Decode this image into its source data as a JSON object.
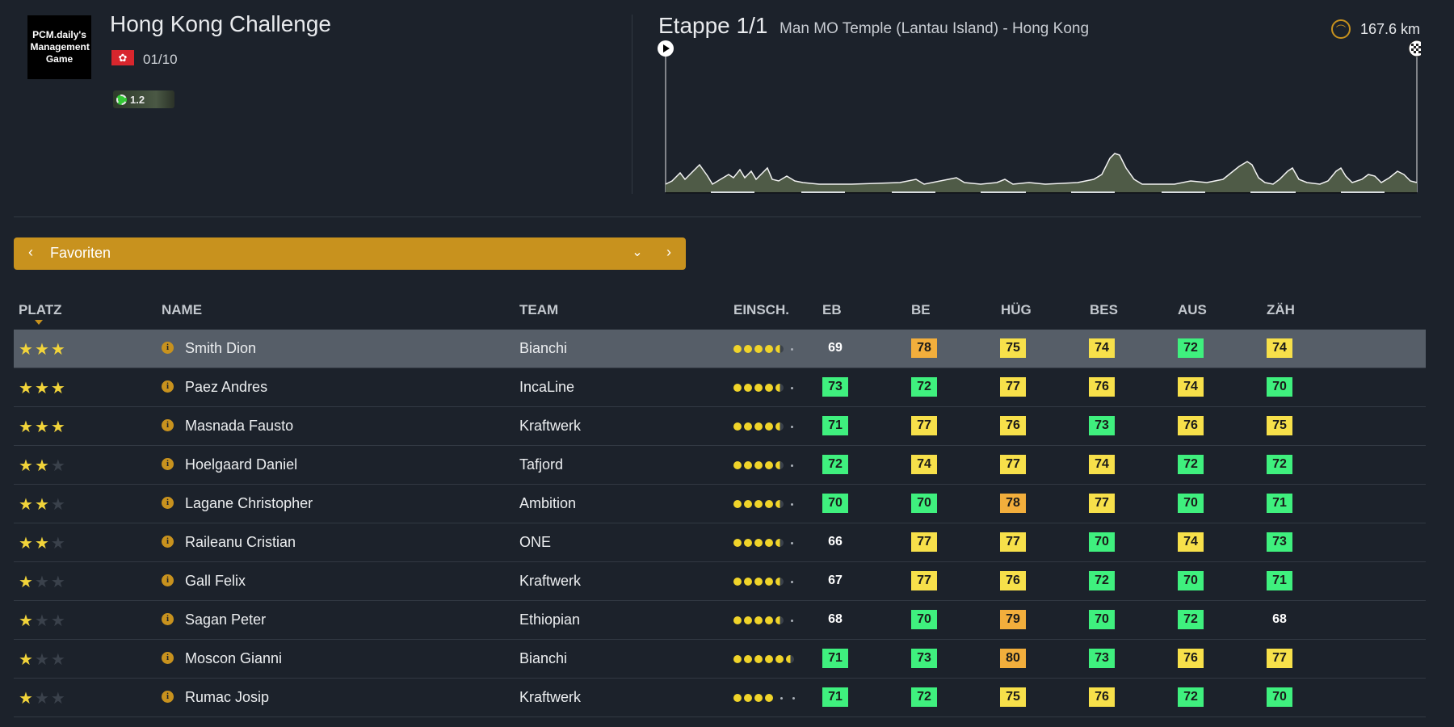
{
  "race": {
    "logo_text": "PCM.daily's Management Game",
    "title": "Hong Kong Challenge",
    "flag_icon": "hong-kong-flag-icon",
    "date": "01/10",
    "category": "1.2"
  },
  "stage": {
    "label": "Etappe 1/1",
    "route": "Man MO Temple (Lantau Island) - Hong Kong",
    "distance": "167.6 km"
  },
  "selector": {
    "label": "Favoriten"
  },
  "columns": [
    "PLATZ",
    "NAME",
    "TEAM",
    "EINSCH.",
    "EB",
    "BE",
    "HÜG",
    "BES",
    "AUS",
    "ZÄH"
  ],
  "colors": {
    "green": "#3ff07e",
    "yellow": "#f7e04a",
    "orange": "#f2ae3c",
    "accent": "#c8921e"
  },
  "riders": [
    {
      "stars": 3,
      "name": "Smith Dion",
      "team": "Bianchi",
      "form": [
        2,
        2,
        2,
        2,
        1,
        0
      ],
      "stats": [
        {
          "v": "69",
          "c": "plain"
        },
        {
          "v": "78",
          "c": "orange"
        },
        {
          "v": "75",
          "c": "yellow"
        },
        {
          "v": "74",
          "c": "yellow"
        },
        {
          "v": "72",
          "c": "green"
        },
        {
          "v": "74",
          "c": "yellow"
        }
      ]
    },
    {
      "stars": 3,
      "name": "Paez Andres",
      "team": "IncaLine",
      "form": [
        2,
        2,
        2,
        2,
        1,
        0
      ],
      "stats": [
        {
          "v": "73",
          "c": "green"
        },
        {
          "v": "72",
          "c": "green"
        },
        {
          "v": "77",
          "c": "yellow"
        },
        {
          "v": "76",
          "c": "yellow"
        },
        {
          "v": "74",
          "c": "yellow"
        },
        {
          "v": "70",
          "c": "green"
        }
      ]
    },
    {
      "stars": 3,
      "name": "Masnada Fausto",
      "team": "Kraftwerk",
      "form": [
        2,
        2,
        2,
        2,
        1,
        0
      ],
      "stats": [
        {
          "v": "71",
          "c": "green"
        },
        {
          "v": "77",
          "c": "yellow"
        },
        {
          "v": "76",
          "c": "yellow"
        },
        {
          "v": "73",
          "c": "green"
        },
        {
          "v": "76",
          "c": "yellow"
        },
        {
          "v": "75",
          "c": "yellow"
        }
      ]
    },
    {
      "stars": 2,
      "name": "Hoelgaard Daniel",
      "team": "Tafjord",
      "form": [
        2,
        2,
        2,
        2,
        1,
        0
      ],
      "stats": [
        {
          "v": "72",
          "c": "green"
        },
        {
          "v": "74",
          "c": "yellow"
        },
        {
          "v": "77",
          "c": "yellow"
        },
        {
          "v": "74",
          "c": "yellow"
        },
        {
          "v": "72",
          "c": "green"
        },
        {
          "v": "72",
          "c": "green"
        }
      ]
    },
    {
      "stars": 2,
      "name": "Lagane Christopher",
      "team": "Ambition",
      "form": [
        2,
        2,
        2,
        2,
        1,
        0
      ],
      "stats": [
        {
          "v": "70",
          "c": "green"
        },
        {
          "v": "70",
          "c": "green"
        },
        {
          "v": "78",
          "c": "orange"
        },
        {
          "v": "77",
          "c": "yellow"
        },
        {
          "v": "70",
          "c": "green"
        },
        {
          "v": "71",
          "c": "green"
        }
      ]
    },
    {
      "stars": 2,
      "name": "Raileanu Cristian",
      "team": "ONE",
      "form": [
        2,
        2,
        2,
        2,
        1,
        0
      ],
      "stats": [
        {
          "v": "66",
          "c": "plain"
        },
        {
          "v": "77",
          "c": "yellow"
        },
        {
          "v": "77",
          "c": "yellow"
        },
        {
          "v": "70",
          "c": "green"
        },
        {
          "v": "74",
          "c": "yellow"
        },
        {
          "v": "73",
          "c": "green"
        }
      ]
    },
    {
      "stars": 1,
      "name": "Gall Felix",
      "team": "Kraftwerk",
      "form": [
        2,
        2,
        2,
        2,
        1,
        0
      ],
      "stats": [
        {
          "v": "67",
          "c": "plain"
        },
        {
          "v": "77",
          "c": "yellow"
        },
        {
          "v": "76",
          "c": "yellow"
        },
        {
          "v": "72",
          "c": "green"
        },
        {
          "v": "70",
          "c": "green"
        },
        {
          "v": "71",
          "c": "green"
        }
      ]
    },
    {
      "stars": 1,
      "name": "Sagan Peter",
      "team": "Ethiopian",
      "form": [
        2,
        2,
        2,
        2,
        1,
        0
      ],
      "stats": [
        {
          "v": "68",
          "c": "plain"
        },
        {
          "v": "70",
          "c": "green"
        },
        {
          "v": "79",
          "c": "orange"
        },
        {
          "v": "70",
          "c": "green"
        },
        {
          "v": "72",
          "c": "green"
        },
        {
          "v": "68",
          "c": "plain"
        }
      ]
    },
    {
      "stars": 1,
      "name": "Moscon Gianni",
      "team": "Bianchi",
      "form": [
        2,
        2,
        2,
        2,
        2,
        1
      ],
      "stats": [
        {
          "v": "71",
          "c": "green"
        },
        {
          "v": "73",
          "c": "green"
        },
        {
          "v": "80",
          "c": "orange"
        },
        {
          "v": "73",
          "c": "green"
        },
        {
          "v": "76",
          "c": "yellow"
        },
        {
          "v": "77",
          "c": "yellow"
        }
      ]
    },
    {
      "stars": 1,
      "name": "Rumac Josip",
      "team": "Kraftwerk",
      "form": [
        2,
        2,
        2,
        2,
        0,
        0
      ],
      "stats": [
        {
          "v": "71",
          "c": "green"
        },
        {
          "v": "72",
          "c": "green"
        },
        {
          "v": "75",
          "c": "yellow"
        },
        {
          "v": "76",
          "c": "yellow"
        },
        {
          "v": "72",
          "c": "green"
        },
        {
          "v": "70",
          "c": "green"
        }
      ]
    }
  ]
}
